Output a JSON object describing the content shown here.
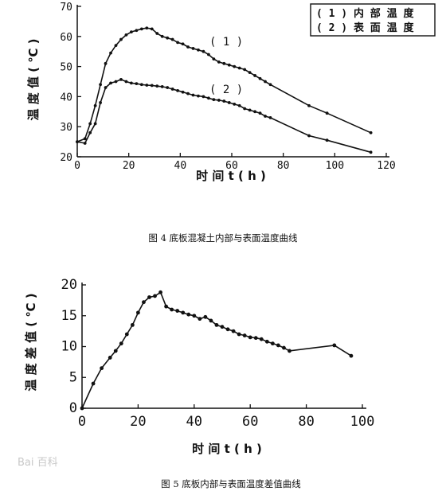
{
  "chart_data": [
    {
      "type": "line",
      "caption": "图 4   底板混凝土内部与表面温度曲线",
      "xlabel": "时 间 t ( h )",
      "ylabel": "温 度 值 ( ℃ )",
      "xlim": [
        0,
        120
      ],
      "ylim": [
        20,
        70
      ],
      "xticks": [
        0,
        20,
        40,
        60,
        80,
        100,
        120
      ],
      "yticks": [
        20,
        30,
        40,
        50,
        60,
        70
      ],
      "legend_position": "top-right",
      "legend": [
        "( 1 )  内 部 温 度",
        "( 2 )  表 面 温 度"
      ],
      "series": [
        {
          "name": "(1)",
          "x": [
            0,
            3,
            5,
            7,
            9,
            11,
            13,
            15,
            17,
            19,
            21,
            23,
            25,
            27,
            29,
            31,
            33,
            35,
            37,
            39,
            41,
            43,
            45,
            47,
            49,
            51,
            53,
            55,
            57,
            59,
            61,
            63,
            65,
            67,
            69,
            71,
            73,
            75,
            90,
            97,
            114
          ],
          "y": [
            25,
            26,
            31,
            37,
            44,
            51,
            54.5,
            57,
            59,
            60.5,
            61.5,
            62,
            62.5,
            62.8,
            62.5,
            61,
            60,
            59.5,
            59,
            58,
            57.5,
            56.5,
            56,
            55.5,
            55,
            54,
            52.5,
            51.5,
            51,
            50.5,
            50,
            49.5,
            49,
            48,
            47,
            46,
            45,
            44,
            37,
            34.5,
            28
          ]
        },
        {
          "name": "(2)",
          "x": [
            0,
            3,
            5,
            7,
            9,
            11,
            13,
            15,
            17,
            19,
            21,
            23,
            25,
            27,
            29,
            31,
            33,
            35,
            37,
            39,
            41,
            43,
            45,
            47,
            49,
            51,
            53,
            55,
            57,
            59,
            61,
            63,
            65,
            67,
            69,
            71,
            73,
            75,
            90,
            97,
            114
          ],
          "y": [
            25,
            24.5,
            28,
            31,
            38,
            43,
            44.5,
            45,
            45.7,
            45,
            44.5,
            44.3,
            44,
            43.8,
            43.7,
            43.5,
            43.3,
            43,
            42.5,
            42,
            41.5,
            41,
            40.5,
            40.2,
            40,
            39.5,
            39,
            38.8,
            38.5,
            38,
            37.5,
            37,
            36,
            35.5,
            35,
            34.5,
            33.5,
            33,
            27,
            25.5,
            21.5
          ]
        }
      ],
      "series_labels": [
        "( 1 )",
        "( 2 )"
      ]
    },
    {
      "type": "line",
      "caption": "图 5   底板内部与表面温度差值曲线",
      "xlabel": "时 间 t ( h )",
      "ylabel": "温 度 差 值 ( ℃ )",
      "xlim": [
        0,
        100
      ],
      "ylim": [
        0,
        20
      ],
      "xticks": [
        0,
        20,
        40,
        60,
        80,
        100
      ],
      "yticks": [
        0,
        5,
        10,
        15,
        20
      ],
      "series": [
        {
          "x": [
            0,
            4,
            7,
            10,
            12,
            14,
            16,
            18,
            20,
            22,
            24,
            26,
            28,
            30,
            32,
            34,
            36,
            38,
            40,
            42,
            44,
            46,
            48,
            50,
            52,
            54,
            56,
            58,
            60,
            62,
            64,
            66,
            68,
            70,
            72,
            74,
            90,
            96
          ],
          "y": [
            0,
            4,
            6.5,
            8.2,
            9.3,
            10.5,
            12,
            13.5,
            15.5,
            17.2,
            18,
            18.2,
            18.8,
            16.5,
            16,
            15.8,
            15.5,
            15.2,
            15,
            14.5,
            14.8,
            14.2,
            13.5,
            13.2,
            12.8,
            12.5,
            12,
            11.8,
            11.5,
            11.4,
            11.2,
            10.8,
            10.5,
            10.2,
            9.8,
            9.3,
            10.2,
            8.5
          ]
        }
      ]
    }
  ],
  "watermark": "Bai 百科"
}
